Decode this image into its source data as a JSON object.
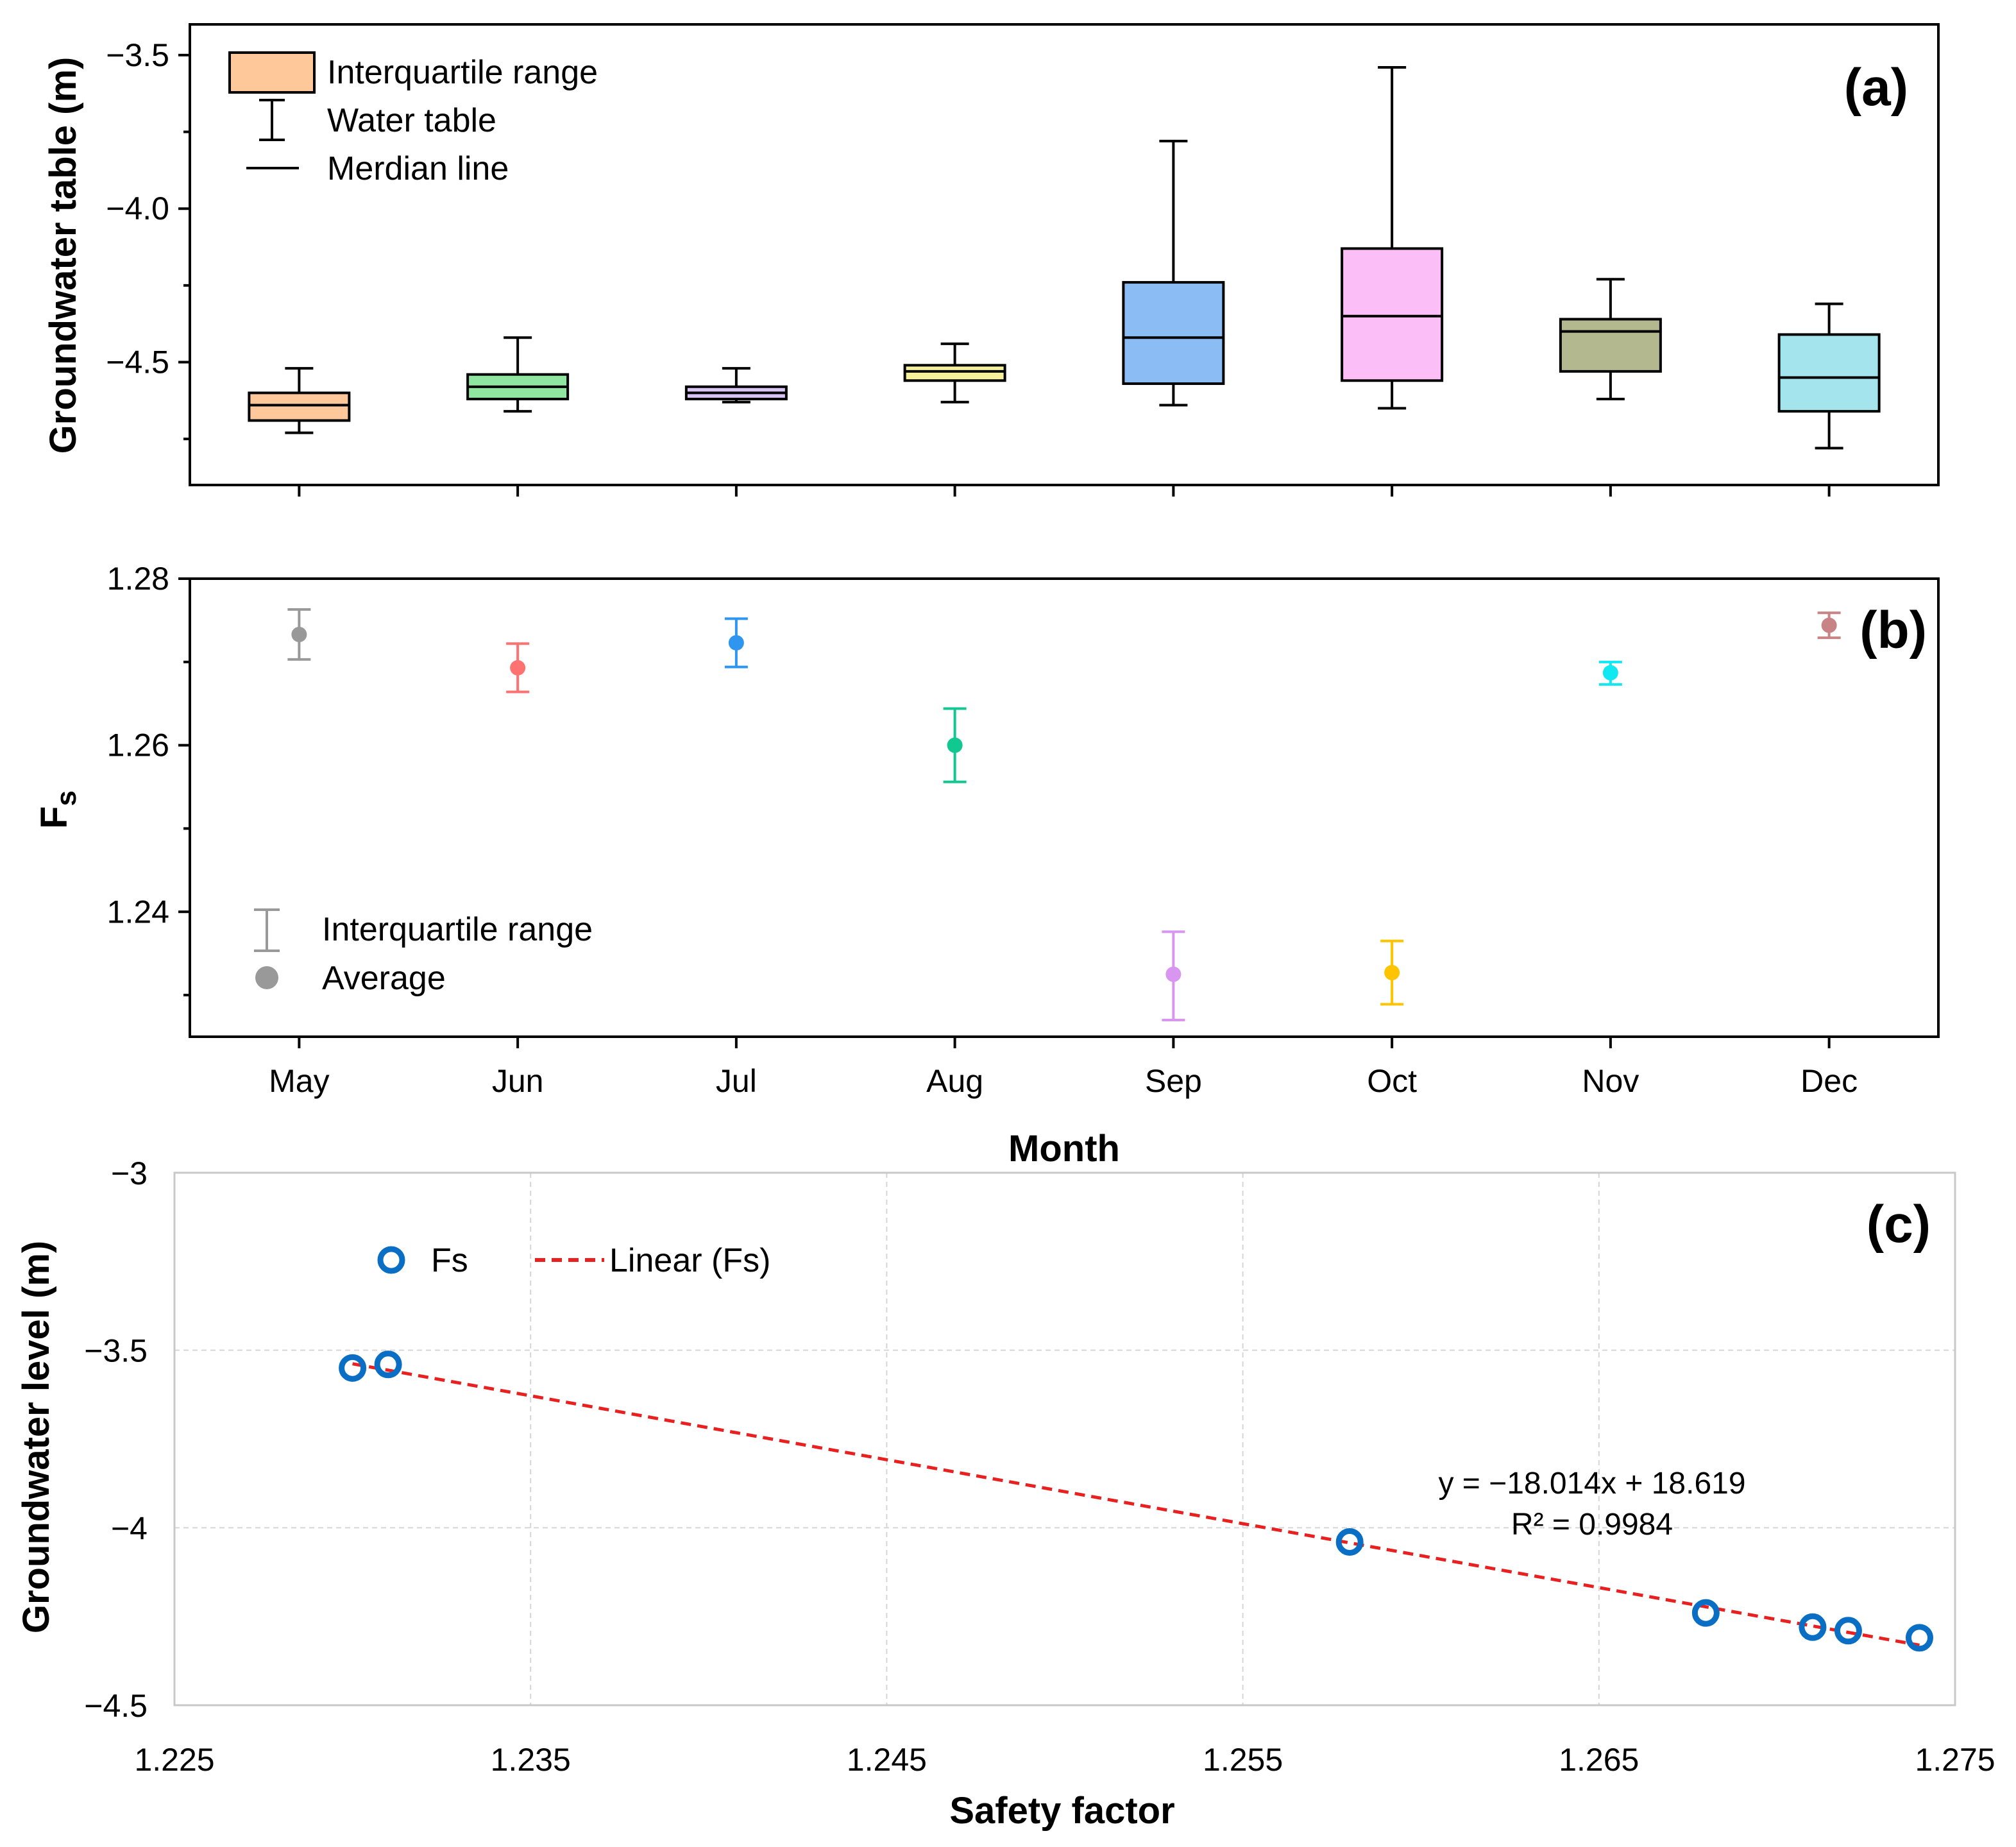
{
  "chart_data": [
    {
      "id": "a",
      "type": "box",
      "panel_label": "(a)",
      "ylabel": "Groundwater table (m)",
      "ylim": [
        -4.9,
        -3.4
      ],
      "yticks": [
        -3.5,
        -4.0,
        -4.5
      ],
      "ytick_labels": [
        "−3.5",
        "−4.0",
        "−4.5"
      ],
      "categories": [
        "May",
        "Jun",
        "Jul",
        "Aug",
        "Sep",
        "Oct",
        "Nov",
        "Dec"
      ],
      "boxes": [
        {
          "month": "May",
          "min": -4.73,
          "q1": -4.69,
          "median": -4.64,
          "q3": -4.6,
          "max": -4.52,
          "color": "#ffc89a"
        },
        {
          "month": "Jun",
          "min": -4.66,
          "q1": -4.62,
          "median": -4.58,
          "q3": -4.54,
          "max": -4.42,
          "color": "#90e6a0"
        },
        {
          "month": "Jul",
          "min": -4.63,
          "q1": -4.62,
          "median": -4.6,
          "q3": -4.58,
          "max": -4.52,
          "color": "#d8c4f4"
        },
        {
          "month": "Aug",
          "min": -4.63,
          "q1": -4.56,
          "median": -4.53,
          "q3": -4.51,
          "max": -4.44,
          "color": "#f6f09a"
        },
        {
          "month": "Sep",
          "min": -4.64,
          "q1": -4.57,
          "median": -4.42,
          "q3": -4.24,
          "max": -3.78,
          "color": "#8cbcf4"
        },
        {
          "month": "Oct",
          "min": -4.65,
          "q1": -4.56,
          "median": -4.35,
          "q3": -4.13,
          "max": -3.54,
          "color": "#fcbef6"
        },
        {
          "month": "Nov",
          "min": -4.62,
          "q1": -4.53,
          "median": -4.4,
          "q3": -4.36,
          "max": -4.23,
          "color": "#b4b88e"
        },
        {
          "month": "Dec",
          "min": -4.78,
          "q1": -4.66,
          "median": -4.55,
          "q3": -4.41,
          "max": -4.31,
          "color": "#a4e4ec"
        }
      ],
      "legend": [
        "Interquartile range",
        "Water table",
        "Merdian line"
      ],
      "legend_colors": {
        "box": "#ffc89a"
      }
    },
    {
      "id": "b",
      "type": "errorbar",
      "panel_label": "(b)",
      "ylabel": "F",
      "ylabel_sub": "s",
      "ylim": [
        1.225,
        1.28
      ],
      "yticks": [
        1.28,
        1.26,
        1.24
      ],
      "ytick_labels": [
        "1.28",
        "1.26",
        "1.24"
      ],
      "xlabel": "Month",
      "categories": [
        "May",
        "Jun",
        "Jul",
        "Aug",
        "Sep",
        "Oct",
        "Nov",
        "Dec"
      ],
      "points": [
        {
          "month": "May",
          "mean": 1.2733,
          "low": 1.2703,
          "high": 1.2763,
          "color": "#999999"
        },
        {
          "month": "Jun",
          "mean": 1.2693,
          "low": 1.2664,
          "high": 1.2722,
          "color": "#ff7272"
        },
        {
          "month": "Jul",
          "mean": 1.2723,
          "low": 1.2694,
          "high": 1.2752,
          "color": "#2f96f0"
        },
        {
          "month": "Aug",
          "mean": 1.26,
          "low": 1.2556,
          "high": 1.2644,
          "color": "#10c890"
        },
        {
          "month": "Sep",
          "mean": 1.2325,
          "low": 1.227,
          "high": 1.2376,
          "color": "#d896f0"
        },
        {
          "month": "Oct",
          "mean": 1.2327,
          "low": 1.2289,
          "high": 1.2365,
          "color": "#ffc400"
        },
        {
          "month": "Nov",
          "mean": 1.2687,
          "low": 1.2673,
          "high": 1.27,
          "color": "#11e8f2"
        },
        {
          "month": "Dec",
          "mean": 1.2744,
          "low": 1.2729,
          "high": 1.2759,
          "color": "#c88484"
        }
      ],
      "legend": [
        "Interquartile range",
        "Average"
      ],
      "legend_color": "#999999"
    },
    {
      "id": "c",
      "type": "scatter",
      "panel_label": "(c)",
      "xlabel": "Safety factor",
      "ylabel": "Groundwater level (m)",
      "xlim": [
        1.225,
        1.275
      ],
      "ylim": [
        -4.5,
        -3
      ],
      "xticks": [
        1.225,
        1.235,
        1.245,
        1.255,
        1.265,
        1.275
      ],
      "xtick_labels": [
        "1.225",
        "1.235",
        "1.245",
        "1.255",
        "1.265",
        "1.275"
      ],
      "yticks": [
        -3,
        -3.5,
        -4,
        -4.5
      ],
      "ytick_labels": [
        "−3",
        "−3.5",
        "−4",
        "−4.5"
      ],
      "grid": true,
      "series": [
        {
          "name": "Fs",
          "x": [
            1.23,
            1.231,
            1.258,
            1.268,
            1.271,
            1.272,
            1.274
          ],
          "y": [
            -3.55,
            -3.54,
            -4.04,
            -4.24,
            -4.28,
            -4.29,
            -4.31
          ],
          "color": "#0a6fc4"
        }
      ],
      "trendline": {
        "name": "Linear (Fs)",
        "slope": -18.014,
        "intercept": 18.619,
        "x_range": [
          1.23,
          1.274
        ],
        "color": "#e82020"
      },
      "equation": "y = −18.014x + 18.619",
      "r_squared": "R² = 0.9984",
      "legend": [
        "Fs",
        "Linear (Fs)"
      ]
    }
  ]
}
